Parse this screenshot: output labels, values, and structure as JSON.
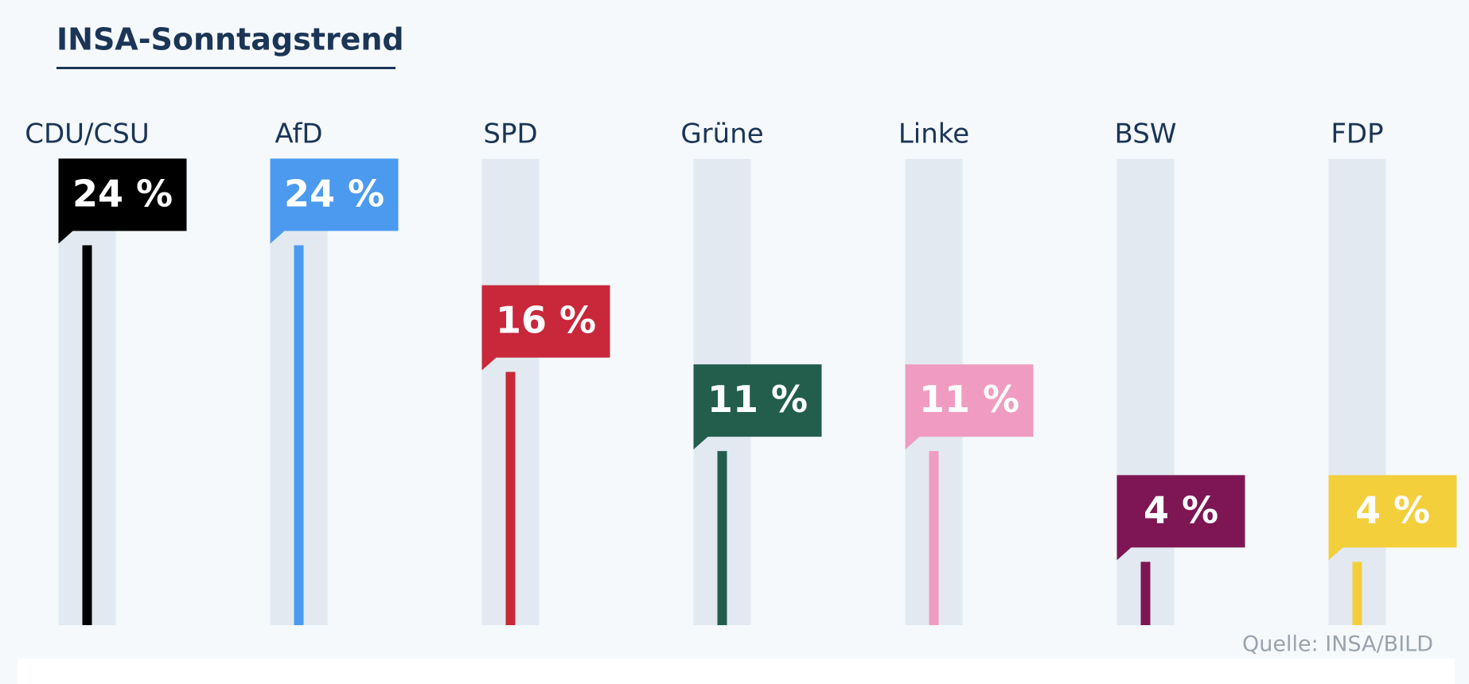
{
  "chart_data": {
    "type": "bar",
    "title": "INSA-Sonntagstrend",
    "categories": [
      "CDU/CSU",
      "AfD",
      "SPD",
      "Grüne",
      "Linke",
      "BSW",
      "FDP"
    ],
    "values": [
      24,
      24,
      16,
      11,
      11,
      4,
      4
    ],
    "value_labels": [
      "24 %",
      "24 %",
      "16 %",
      "11 %",
      "11 %",
      "4 %",
      "4 %"
    ],
    "colors": [
      "#000000",
      "#4b9aef",
      "#c8283a",
      "#235e4d",
      "#f09cc0",
      "#7e1654",
      "#f3cf3c"
    ],
    "source": "Quelle: INSA/BILD"
  }
}
